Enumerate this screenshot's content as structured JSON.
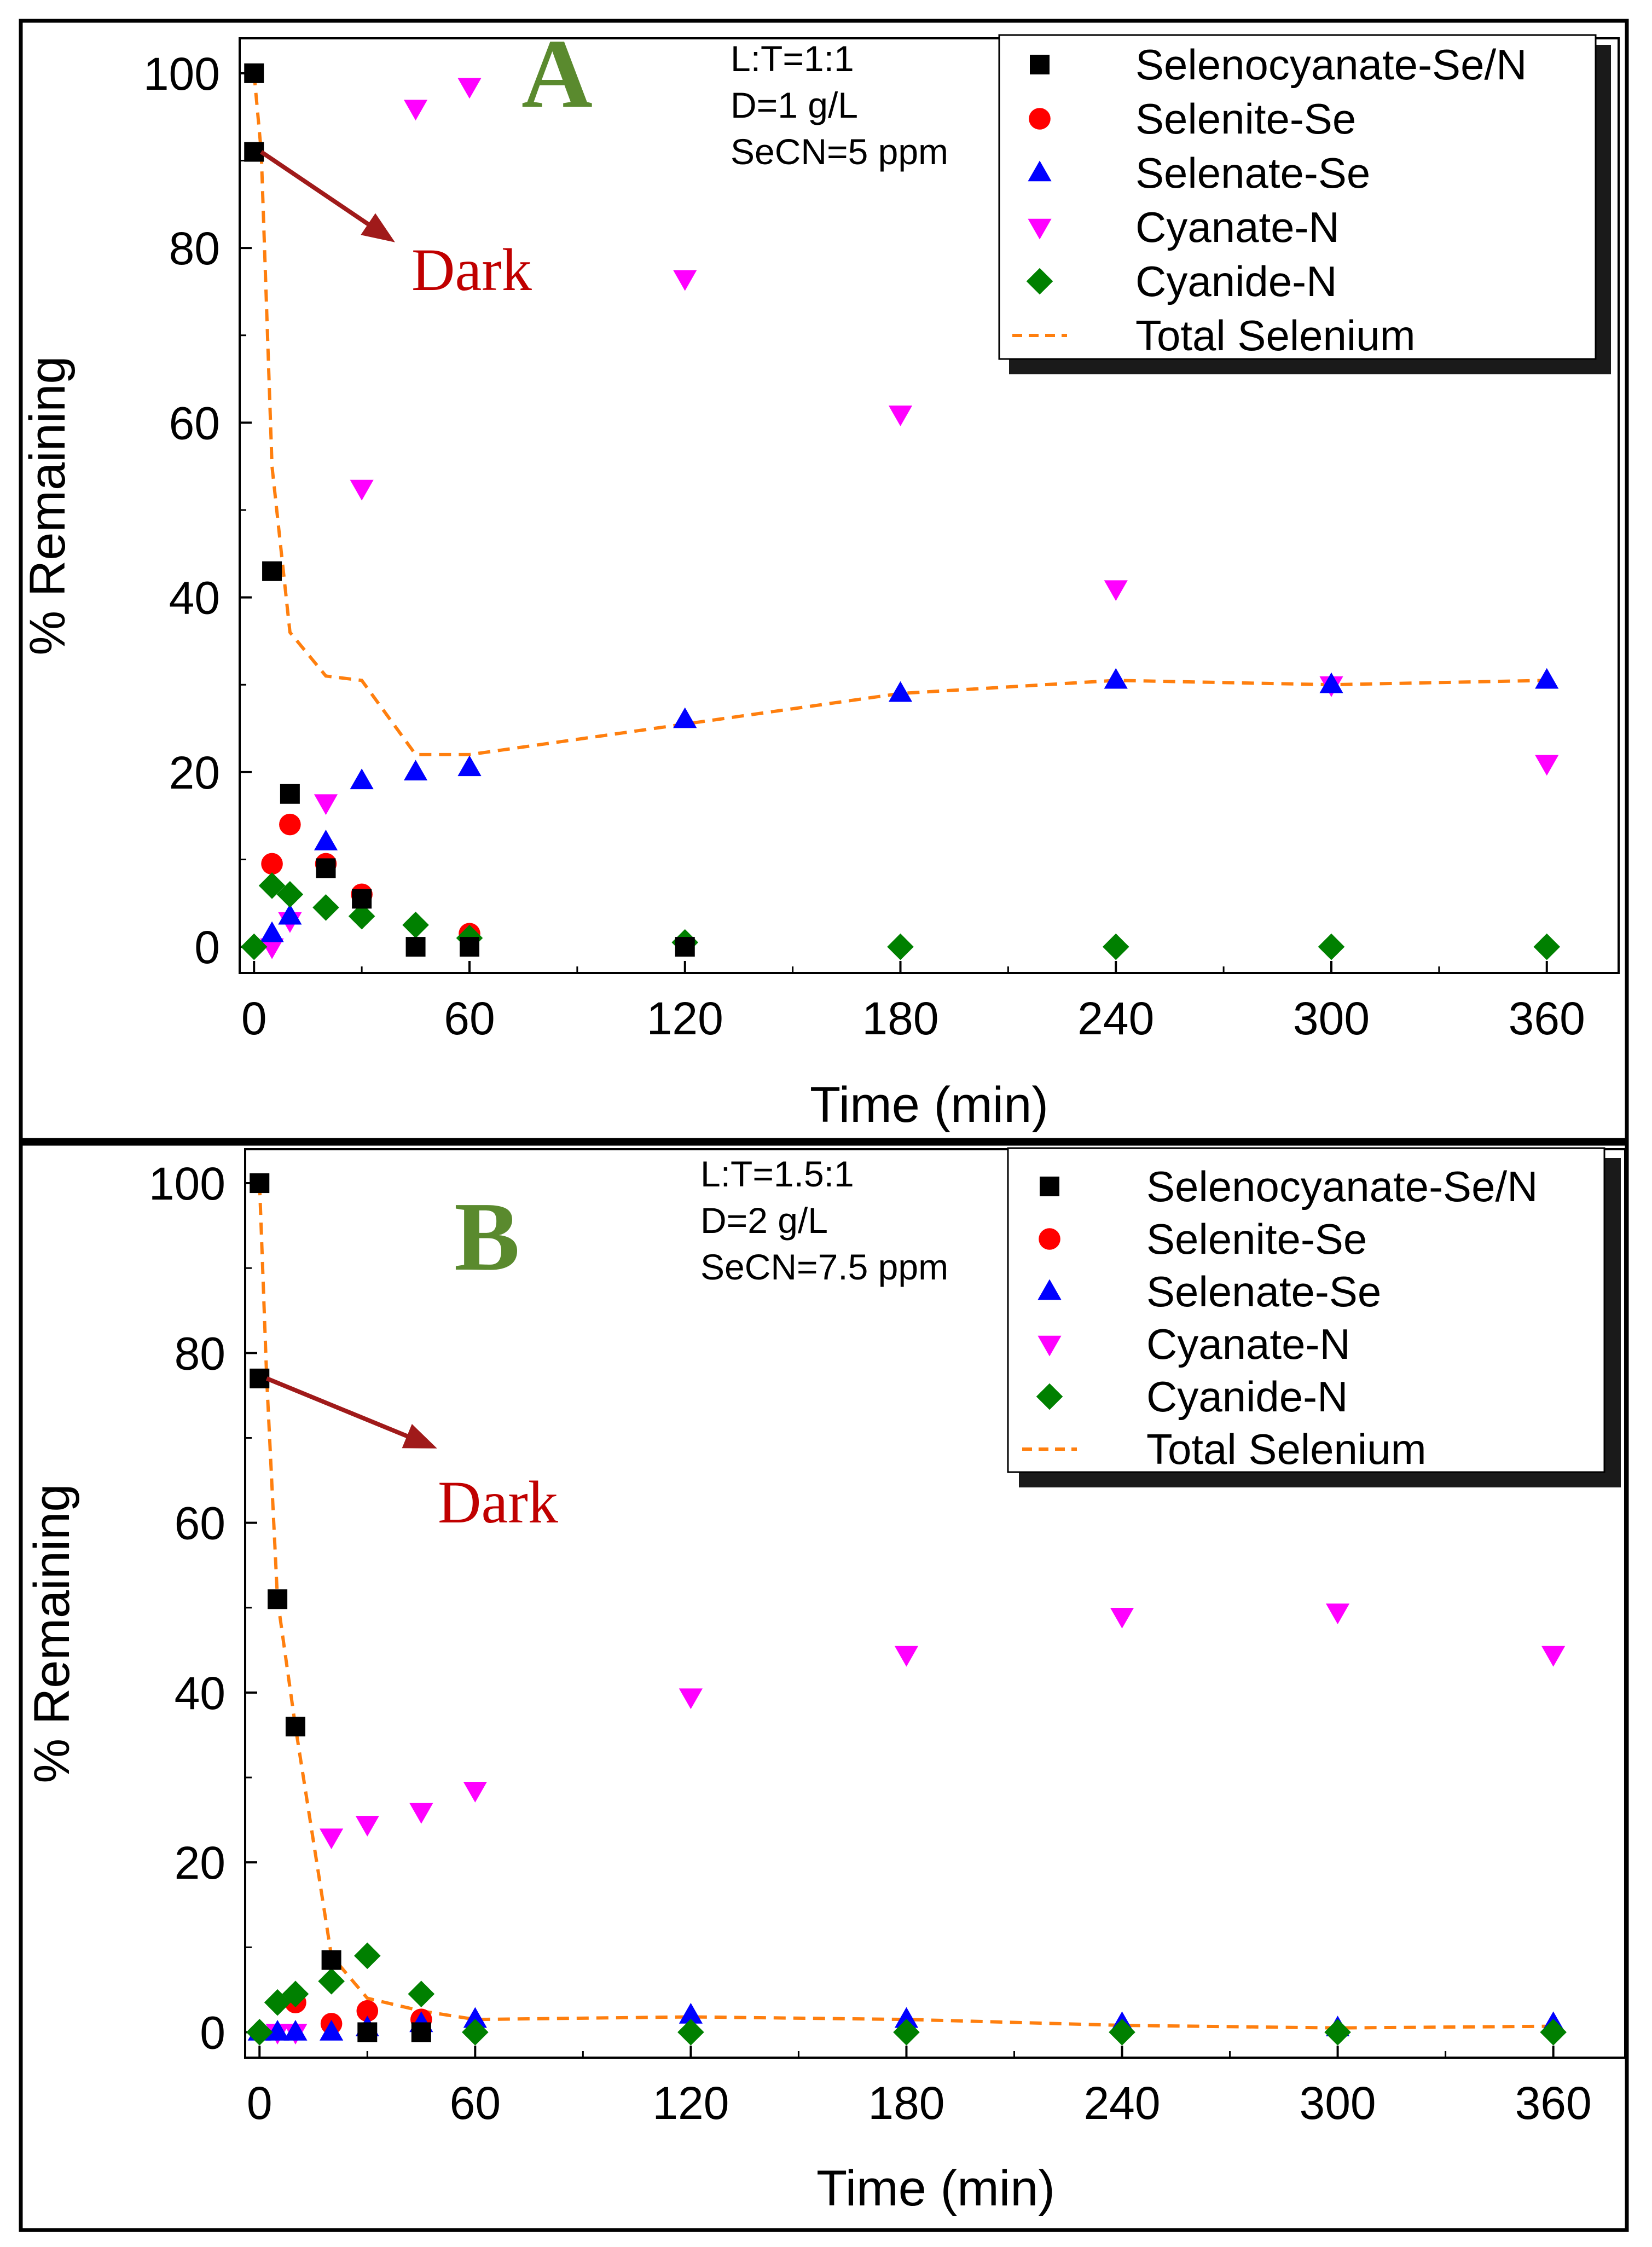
{
  "chart_data": [
    {
      "type": "scatter",
      "panel_label": "A",
      "xlabel": "Time (min)",
      "ylabel": "% Remaining",
      "xlim": [
        -4,
        380
      ],
      "ylim": [
        -3,
        104
      ],
      "x_ticks": [
        0,
        60,
        120,
        180,
        240,
        300,
        360
      ],
      "y_ticks": [
        0,
        20,
        40,
        60,
        80,
        100
      ],
      "conditions": [
        "L:T=1:1",
        "D=1 g/L",
        "SeCN=5 ppm"
      ],
      "annotation": {
        "text": "Dark",
        "from": [
          2,
          91
        ],
        "to": [
          38,
          81
        ]
      },
      "series": [
        {
          "name": "Selenocyanate-Se/N",
          "marker": "square",
          "color": "#000000",
          "points": [
            [
              0,
              100
            ],
            [
              0,
              91
            ],
            [
              5,
              43
            ],
            [
              10,
              17.5
            ],
            [
              20,
              9
            ],
            [
              30,
              5.5
            ],
            [
              45,
              0
            ],
            [
              60,
              0
            ],
            [
              120,
              0
            ]
          ]
        },
        {
          "name": "Selenite-Se",
          "marker": "circle",
          "color": "#ff0000",
          "points": [
            [
              5,
              9.5
            ],
            [
              10,
              14
            ],
            [
              20,
              9.5
            ],
            [
              30,
              6
            ],
            [
              60,
              1.5
            ]
          ]
        },
        {
          "name": "Selenate-Se",
          "marker": "triangle-up",
          "color": "#0000ff",
          "points": [
            [
              5,
              1.5
            ],
            [
              10,
              3.5
            ],
            [
              20,
              12
            ],
            [
              30,
              19
            ],
            [
              45,
              20
            ],
            [
              60,
              20.5
            ],
            [
              120,
              26
            ],
            [
              180,
              29
            ],
            [
              240,
              30.5
            ],
            [
              300,
              30
            ],
            [
              360,
              30.5
            ]
          ]
        },
        {
          "name": "Cyanate-N",
          "marker": "triangle-down",
          "color": "#ff00ff",
          "points": [
            [
              5,
              0
            ],
            [
              10,
              3
            ],
            [
              20,
              16.5
            ],
            [
              30,
              52.5
            ],
            [
              45,
              96
            ],
            [
              60,
              98.5
            ],
            [
              120,
              76.5
            ],
            [
              180,
              61
            ],
            [
              240,
              41
            ],
            [
              300,
              30
            ],
            [
              360,
              21
            ]
          ]
        },
        {
          "name": "Cyanide-N",
          "marker": "diamond",
          "color": "#008000",
          "points": [
            [
              0,
              0
            ],
            [
              5,
              7
            ],
            [
              10,
              6
            ],
            [
              20,
              4.5
            ],
            [
              30,
              3.5
            ],
            [
              45,
              2.5
            ],
            [
              60,
              1
            ],
            [
              120,
              0.5
            ],
            [
              180,
              0
            ],
            [
              240,
              0
            ],
            [
              300,
              0
            ],
            [
              360,
              0
            ]
          ]
        },
        {
          "name": "Total Selenium",
          "marker": "dashed-line",
          "color": "#ff7f0e",
          "points": [
            [
              0,
              100
            ],
            [
              2,
              91
            ],
            [
              5,
              55
            ],
            [
              10,
              36
            ],
            [
              20,
              31
            ],
            [
              30,
              30.5
            ],
            [
              45,
              22
            ],
            [
              60,
              22
            ],
            [
              120,
              25.5
            ],
            [
              180,
              29
            ],
            [
              240,
              30.5
            ],
            [
              300,
              30
            ],
            [
              360,
              30.5
            ]
          ]
        }
      ]
    },
    {
      "type": "scatter",
      "panel_label": "B",
      "xlabel": "Time (min)",
      "ylabel": "% Remaining",
      "xlim": [
        -4,
        380
      ],
      "ylim": [
        -3,
        104
      ],
      "x_ticks": [
        0,
        60,
        120,
        180,
        240,
        300,
        360
      ],
      "y_ticks": [
        0,
        20,
        40,
        60,
        80,
        100
      ],
      "conditions": [
        "L:T=1.5:1",
        "D=2 g/L",
        "SeCN=7.5 ppm"
      ],
      "annotation": {
        "text": "Dark",
        "from": [
          2,
          77
        ],
        "to": [
          48,
          69
        ]
      },
      "series": [
        {
          "name": "Selenocyanate-Se/N",
          "marker": "square",
          "color": "#000000",
          "points": [
            [
              0,
              100
            ],
            [
              0,
              77
            ],
            [
              5,
              51
            ],
            [
              10,
              36
            ],
            [
              20,
              8.5
            ],
            [
              30,
              0
            ],
            [
              45,
              0
            ]
          ]
        },
        {
          "name": "Selenite-Se",
          "marker": "circle",
          "color": "#ff0000",
          "points": [
            [
              10,
              3.5
            ],
            [
              20,
              1
            ],
            [
              30,
              2.5
            ],
            [
              45,
              1.5
            ]
          ]
        },
        {
          "name": "Selenate-Se",
          "marker": "triangle-up",
          "color": "#0000ff",
          "points": [
            [
              0,
              0
            ],
            [
              5,
              0
            ],
            [
              10,
              0
            ],
            [
              20,
              0
            ],
            [
              30,
              0.5
            ],
            [
              45,
              1
            ],
            [
              60,
              1.5
            ],
            [
              120,
              2
            ],
            [
              180,
              1.5
            ],
            [
              240,
              1
            ],
            [
              300,
              0.5
            ],
            [
              360,
              1
            ]
          ]
        },
        {
          "name": "Cyanate-N",
          "marker": "triangle-down",
          "color": "#ff00ff",
          "points": [
            [
              5,
              0
            ],
            [
              10,
              0
            ],
            [
              20,
              23
            ],
            [
              30,
              24.5
            ],
            [
              45,
              26
            ],
            [
              60,
              28.5
            ],
            [
              120,
              39.5
            ],
            [
              180,
              44.5
            ],
            [
              240,
              49
            ],
            [
              300,
              49.5
            ],
            [
              360,
              44.5
            ]
          ]
        },
        {
          "name": "Cyanide-N",
          "marker": "diamond",
          "color": "#008000",
          "points": [
            [
              0,
              0
            ],
            [
              5,
              3.5
            ],
            [
              10,
              4.5
            ],
            [
              20,
              6
            ],
            [
              30,
              9
            ],
            [
              45,
              4.5
            ],
            [
              60,
              0
            ],
            [
              120,
              0
            ],
            [
              180,
              0
            ],
            [
              240,
              0
            ],
            [
              300,
              0
            ],
            [
              360,
              0
            ]
          ]
        },
        {
          "name": "Total Selenium",
          "marker": "dashed-line",
          "color": "#ff7f0e",
          "points": [
            [
              0,
              100
            ],
            [
              2,
              77
            ],
            [
              5,
              51
            ],
            [
              10,
              36
            ],
            [
              20,
              9
            ],
            [
              30,
              4
            ],
            [
              45,
              2.5
            ],
            [
              60,
              1.5
            ],
            [
              120,
              1.8
            ],
            [
              180,
              1.5
            ],
            [
              240,
              0.8
            ],
            [
              300,
              0.5
            ],
            [
              360,
              0.7
            ]
          ]
        }
      ]
    }
  ]
}
